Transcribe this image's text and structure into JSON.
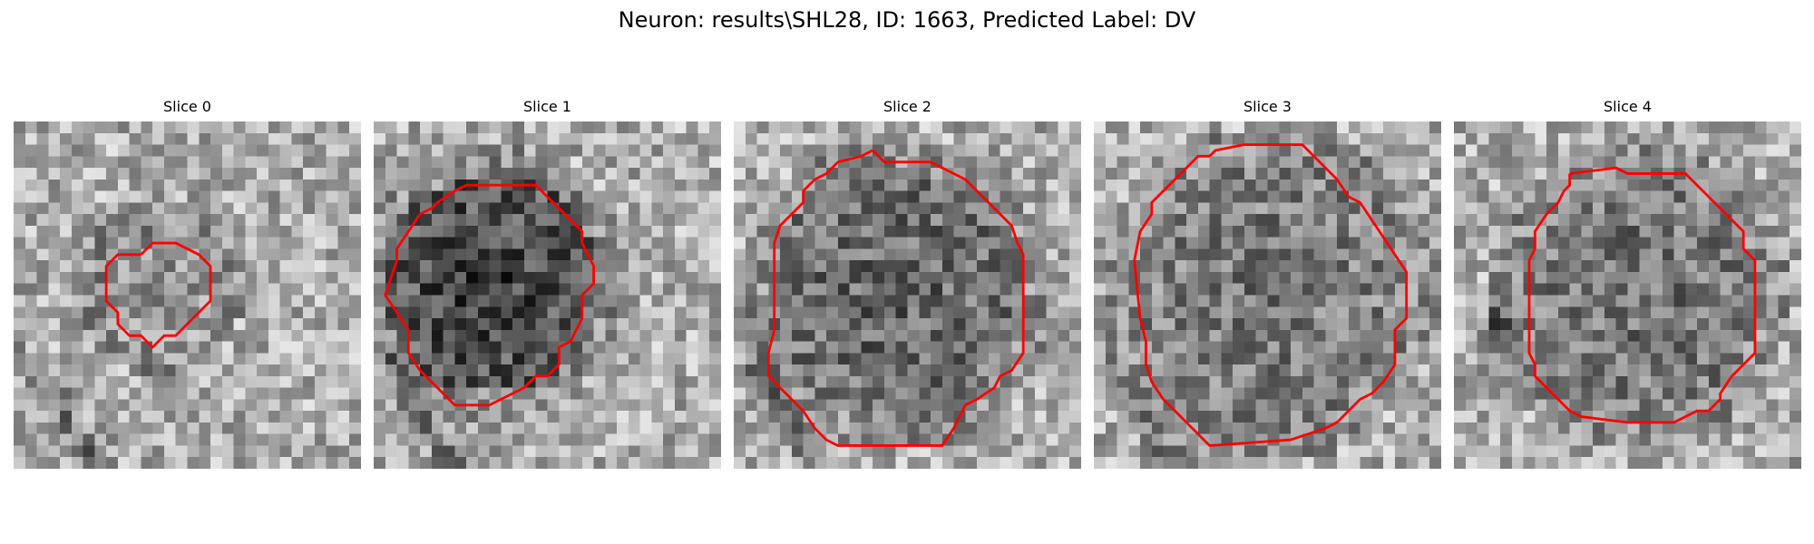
{
  "figure": {
    "title": "Neuron: results\\SHL28, ID: 1663, Predicted Label: DV"
  },
  "contour_color": "#ff0000",
  "panels": [
    {
      "title": "Slice 0",
      "seed": 11,
      "center_darkness": 0.1,
      "dark_streak": "bottom-left"
    },
    {
      "title": "Slice 1",
      "seed": 27,
      "center_darkness": 0.45,
      "dark_streak": "bottom-left"
    },
    {
      "title": "Slice 2",
      "seed": 43,
      "center_darkness": 0.3,
      "dark_streak": "bottom-left"
    },
    {
      "title": "Slice 3",
      "seed": 59,
      "center_darkness": 0.22,
      "dark_streak": "bottom-left"
    },
    {
      "title": "Slice 4",
      "seed": 71,
      "center_darkness": 0.25,
      "dark_streak": "left"
    }
  ]
}
